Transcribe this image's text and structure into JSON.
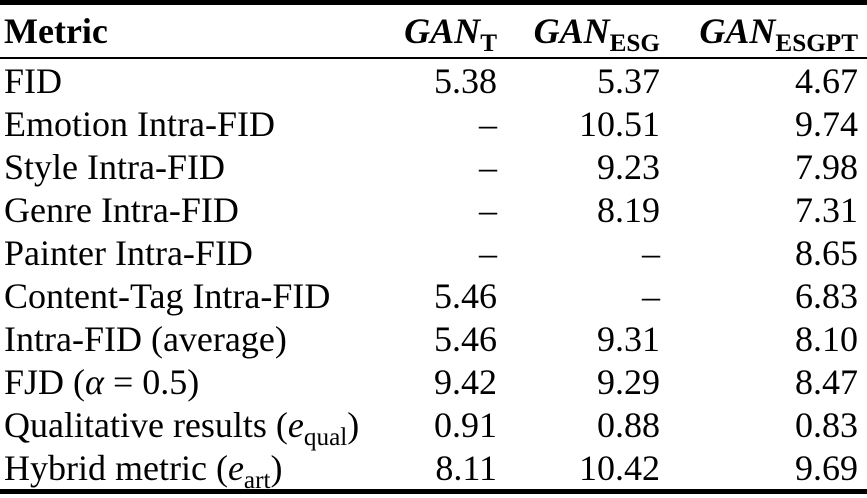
{
  "page": {
    "background": "#ffffff",
    "text_color": "#000000"
  },
  "table": {
    "header": {
      "metric_label": "Metric",
      "models": [
        {
          "base": "GAN",
          "sub": "T"
        },
        {
          "base": "GAN",
          "sub": "ESG"
        },
        {
          "base": "GAN",
          "sub": "ESGPT"
        }
      ]
    },
    "rows": [
      {
        "metric": {
          "pre": "FID",
          "italic": "",
          "sub": "",
          "post": ""
        },
        "values": [
          "5.38",
          "5.37",
          "4.67"
        ]
      },
      {
        "metric": {
          "pre": "Emotion Intra-FID",
          "italic": "",
          "sub": "",
          "post": ""
        },
        "values": [
          "–",
          "10.51",
          "9.74"
        ]
      },
      {
        "metric": {
          "pre": "Style Intra-FID",
          "italic": "",
          "sub": "",
          "post": ""
        },
        "values": [
          "–",
          "9.23",
          "7.98"
        ]
      },
      {
        "metric": {
          "pre": "Genre Intra-FID",
          "italic": "",
          "sub": "",
          "post": ""
        },
        "values": [
          "–",
          "8.19",
          "7.31"
        ]
      },
      {
        "metric": {
          "pre": "Painter Intra-FID",
          "italic": "",
          "sub": "",
          "post": ""
        },
        "values": [
          "–",
          "–",
          "8.65"
        ]
      },
      {
        "metric": {
          "pre": "Content-Tag Intra-FID",
          "italic": "",
          "sub": "",
          "post": ""
        },
        "values": [
          "5.46",
          "–",
          "6.83"
        ]
      },
      {
        "metric": {
          "pre": "Intra-FID (average)",
          "italic": "",
          "sub": "",
          "post": ""
        },
        "values": [
          "5.46",
          "9.31",
          "8.10"
        ]
      },
      {
        "metric": {
          "pre": "FJD (",
          "italic": "α",
          "sub": "",
          "post": " = 0.5)"
        },
        "values": [
          "9.42",
          "9.29",
          "8.47"
        ]
      },
      {
        "metric": {
          "pre": "Qualitative results (",
          "italic": "e",
          "sub": "qual",
          "post": ")"
        },
        "values": [
          "0.91",
          "0.88",
          "0.83"
        ]
      },
      {
        "metric": {
          "pre": "Hybrid metric (",
          "italic": "e",
          "sub": "art",
          "post": ")"
        },
        "values": [
          "8.11",
          "10.42",
          "9.69"
        ]
      }
    ]
  }
}
